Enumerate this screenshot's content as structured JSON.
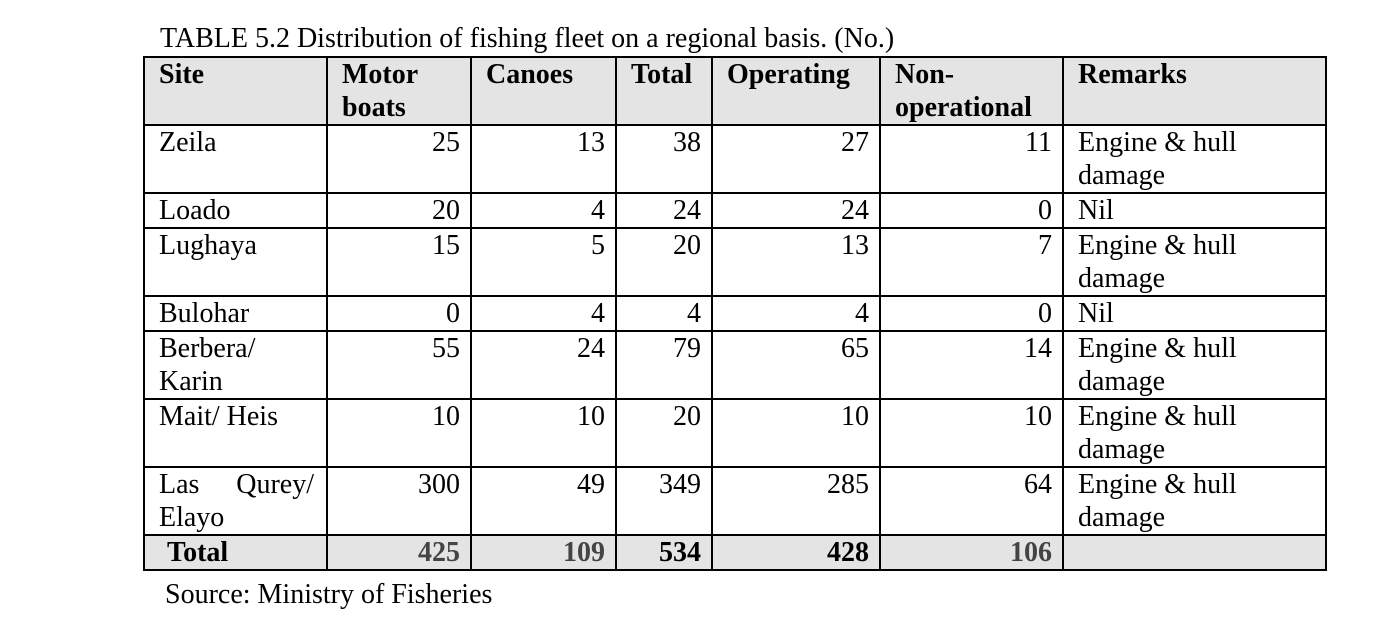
{
  "caption": "TABLE 5.2 Distribution of fishing fleet on a regional basis. (No.)",
  "columns": [
    "Site",
    "Motor boats",
    "Canoes",
    "Total",
    "Operating",
    "Non-operational",
    "Remarks"
  ],
  "header": {
    "site": "Site",
    "motor_line1": "Motor",
    "motor_line2": "boats",
    "canoes": "Canoes",
    "total": "Total",
    "operating": "Operating",
    "nonop_line1": "Non-",
    "nonop_line2": "operational",
    "remarks": "Remarks"
  },
  "rows": [
    {
      "site": "Zeila",
      "motor": "25",
      "canoes": "13",
      "total": "38",
      "operating": "27",
      "nonop": "11",
      "remarks": "Engine & hull damage"
    },
    {
      "site": "Loado",
      "motor": "20",
      "canoes": "4",
      "total": "24",
      "operating": "24",
      "nonop": "0",
      "remarks": "Nil"
    },
    {
      "site": "Lughaya",
      "motor": "15",
      "canoes": "5",
      "total": "20",
      "operating": "13",
      "nonop": "7",
      "remarks": "Engine & hull damage"
    },
    {
      "site": "Bulohar",
      "motor": "0",
      "canoes": "4",
      "total": "4",
      "operating": "4",
      "nonop": "0",
      "remarks": "Nil"
    },
    {
      "site": "Berbera/ Karin",
      "motor": "55",
      "canoes": "24",
      "total": "79",
      "operating": "65",
      "nonop": "14",
      "remarks": "Engine & hull damage"
    },
    {
      "site": "Mait/ Heis",
      "motor": "10",
      "canoes": "10",
      "total": "20",
      "operating": "10",
      "nonop": "10",
      "remarks": "Engine & hull damage"
    },
    {
      "site_part1": "Las",
      "site_part2": "Qurey/",
      "site_part3": "Elayo",
      "motor": "300",
      "canoes": "49",
      "total": "349",
      "operating": "285",
      "nonop": "64",
      "remarks": "Engine & hull damage"
    }
  ],
  "totals": {
    "label": "Total",
    "motor": "425",
    "canoes": "109",
    "total": "534",
    "operating": "428",
    "nonop": "106",
    "remarks": ""
  },
  "source": "Source: Ministry of Fisheries"
}
